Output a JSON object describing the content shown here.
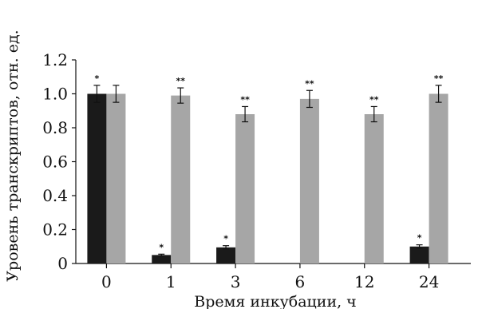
{
  "chart_data": {
    "type": "bar",
    "xlabel": "Время инкубации, ч",
    "ylabel": "Уровень транскриптов, отн. ед.",
    "categories": [
      "0",
      "1",
      "3",
      "6",
      "12",
      "24"
    ],
    "ylim": [
      0,
      1.2
    ],
    "yticks": [
      "0",
      "0.2",
      "0.4",
      "0.6",
      "0.8",
      "1.0",
      "1.2"
    ],
    "series": [
      {
        "color": "#1a1a1a",
        "values": [
          1.0,
          0.05,
          0.095,
          null,
          null,
          0.1
        ],
        "errors": [
          0.05,
          0.005,
          0.01,
          null,
          null,
          0.01
        ],
        "markers": [
          "*",
          "*",
          "*",
          "",
          "",
          "*"
        ]
      },
      {
        "color": "#a6a6a6",
        "values": [
          1.0,
          0.99,
          0.88,
          0.97,
          0.88,
          1.0
        ],
        "errors": [
          0.05,
          0.045,
          0.045,
          0.05,
          0.045,
          0.05
        ],
        "markers": [
          "",
          "**",
          "**",
          "**",
          "**",
          "**"
        ]
      }
    ],
    "grid": false,
    "legend": "none"
  }
}
